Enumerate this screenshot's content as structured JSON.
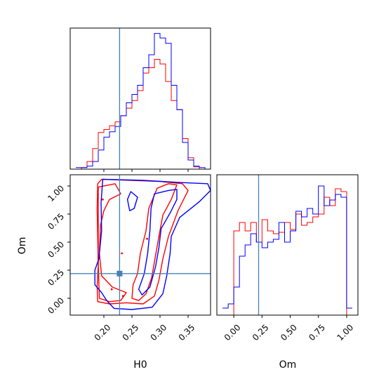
{
  "colors": {
    "red": "#ff0000",
    "blue": "#0000ff",
    "truth": "#4682b4"
  },
  "chart_data": [
    {
      "panel": "hist-H0",
      "type": "histogram",
      "xlim": [
        0.14,
        0.39
      ],
      "truth": 0.228,
      "bins": [
        0.15,
        0.16,
        0.17,
        0.18,
        0.19,
        0.2,
        0.21,
        0.22,
        0.23,
        0.24,
        0.25,
        0.26,
        0.27,
        0.28,
        0.29,
        0.3,
        0.31,
        0.32,
        0.33,
        0.34,
        0.35,
        0.36,
        0.37,
        0.38,
        0.39
      ],
      "series": [
        {
          "color": "red",
          "values": [
            0,
            2,
            10,
            27,
            48,
            52,
            57,
            62,
            70,
            80,
            90,
            103,
            126,
            133,
            144,
            138,
            115,
            90,
            78,
            40,
            15,
            3,
            0,
            0
          ]
        },
        {
          "color": "blue",
          "values": [
            2,
            2,
            4,
            10,
            25,
            42,
            49,
            56,
            70,
            87,
            98,
            110,
            133,
            150,
            178,
            172,
            165,
            110,
            78,
            35,
            12,
            4,
            2,
            0
          ]
        }
      ]
    },
    {
      "panel": "corner-H0-Om",
      "type": "contour",
      "xlabel": "H0",
      "ylabel": "Om",
      "xlim": [
        0.14,
        0.39
      ],
      "ylim": [
        -0.15,
        1.1
      ],
      "xticks": [
        "0.20",
        "0.25",
        "0.30",
        "0.35"
      ],
      "yticks": [
        "0.00",
        "0.25",
        "0.50",
        "0.75",
        "1.00"
      ],
      "truth": {
        "x": 0.228,
        "y": 0.22
      },
      "contours": [
        {
          "color": "red",
          "level": "outer",
          "points": [
            [
              0.189,
              1.02
            ],
            [
              0.196,
              1.06
            ],
            [
              0.25,
              1.05
            ],
            [
              0.3,
              1.04
            ],
            [
              0.34,
              1.02
            ],
            [
              0.35,
              0.96
            ],
            [
              0.332,
              0.78
            ],
            [
              0.315,
              0.55
            ],
            [
              0.305,
              0.35
            ],
            [
              0.298,
              0.16
            ],
            [
              0.29,
              0.02
            ],
            [
              0.27,
              -0.05
            ],
            [
              0.24,
              -0.04
            ],
            [
              0.21,
              -0.05
            ],
            [
              0.189,
              -0.03
            ],
            [
              0.188,
              0.1
            ],
            [
              0.19,
              0.3
            ],
            [
              0.189,
              0.55
            ],
            [
              0.188,
              0.8
            ],
            [
              0.189,
              1.02
            ]
          ]
        },
        {
          "color": "red",
          "level": "inner",
          "points": [
            [
              0.19,
              0.99
            ],
            [
              0.22,
              1.02
            ],
            [
              0.23,
              0.93
            ],
            [
              0.21,
              0.88
            ],
            [
              0.2,
              0.78
            ],
            [
              0.194,
              0.65
            ],
            [
              0.192,
              0.4
            ],
            [
              0.196,
              0.2
            ],
            [
              0.215,
              0.1
            ],
            [
              0.24,
              0.05
            ],
            [
              0.23,
              -0.02
            ],
            [
              0.21,
              -0.03
            ],
            [
              0.192,
              0.0
            ],
            [
              0.19,
              0.3
            ],
            [
              0.19,
              0.7
            ],
            [
              0.19,
              0.99
            ]
          ]
        },
        {
          "color": "red",
          "level": "inner",
          "points": [
            [
              0.295,
              0.98
            ],
            [
              0.315,
              1.02
            ],
            [
              0.33,
              1.01
            ],
            [
              0.32,
              0.88
            ],
            [
              0.305,
              0.74
            ],
            [
              0.298,
              0.55
            ],
            [
              0.292,
              0.38
            ],
            [
              0.285,
              0.18
            ],
            [
              0.275,
              0.04
            ],
            [
              0.262,
              -0.02
            ],
            [
              0.25,
              0.0
            ],
            [
              0.252,
              0.12
            ],
            [
              0.26,
              0.22
            ],
            [
              0.265,
              0.4
            ],
            [
              0.275,
              0.6
            ],
            [
              0.28,
              0.8
            ],
            [
              0.295,
              0.98
            ]
          ]
        },
        {
          "color": "blue",
          "level": "outer",
          "points": [
            [
              0.198,
              1.06
            ],
            [
              0.27,
              1.05
            ],
            [
              0.34,
              1.03
            ],
            [
              0.385,
              1.02
            ],
            [
              0.39,
              0.96
            ],
            [
              0.37,
              0.86
            ],
            [
              0.335,
              0.72
            ],
            [
              0.32,
              0.55
            ],
            [
              0.318,
              0.4
            ],
            [
              0.312,
              0.2
            ],
            [
              0.305,
              0.04
            ],
            [
              0.286,
              -0.08
            ],
            [
              0.25,
              -0.1
            ],
            [
              0.218,
              -0.09
            ],
            [
              0.205,
              -0.02
            ],
            [
              0.196,
              0.05
            ],
            [
              0.184,
              0.12
            ],
            [
              0.184,
              0.25
            ],
            [
              0.191,
              0.35
            ],
            [
              0.196,
              0.6
            ],
            [
              0.195,
              0.85
            ],
            [
              0.198,
              1.06
            ]
          ]
        },
        {
          "color": "blue",
          "level": "inner",
          "points": [
            [
              0.29,
              0.93
            ],
            [
              0.315,
              0.96
            ],
            [
              0.33,
              0.97
            ],
            [
              0.33,
              0.88
            ],
            [
              0.318,
              0.76
            ],
            [
              0.302,
              0.62
            ],
            [
              0.298,
              0.45
            ],
            [
              0.292,
              0.28
            ],
            [
              0.282,
              0.1
            ],
            [
              0.268,
              0.03
            ],
            [
              0.262,
              0.08
            ],
            [
              0.272,
              0.22
            ],
            [
              0.278,
              0.4
            ],
            [
              0.282,
              0.6
            ],
            [
              0.284,
              0.8
            ],
            [
              0.29,
              0.93
            ]
          ]
        },
        {
          "color": "blue",
          "level": "inner",
          "points": [
            [
              0.242,
              0.88
            ],
            [
              0.248,
              0.95
            ],
            [
              0.26,
              0.9
            ],
            [
              0.254,
              0.8
            ],
            [
              0.246,
              0.78
            ],
            [
              0.242,
              0.88
            ]
          ]
        }
      ]
    },
    {
      "panel": "hist-Om",
      "type": "histogram",
      "xlabel": "Om",
      "xlim": [
        -0.15,
        1.1
      ],
      "xticks": [
        "0.00",
        "0.25",
        "0.50",
        "0.75",
        "1.00"
      ],
      "truth": 0.22,
      "bins": [
        -0.1,
        -0.05,
        0.0,
        0.05,
        0.1,
        0.15,
        0.2,
        0.25,
        0.3,
        0.35,
        0.4,
        0.45,
        0.5,
        0.55,
        0.6,
        0.65,
        0.7,
        0.75,
        0.8,
        0.85,
        0.9,
        0.95,
        1.0,
        1.05
      ],
      "series": [
        {
          "color": "red",
          "values": [
            0,
            0,
            60,
            66,
            60,
            66,
            52,
            68,
            60,
            58,
            59,
            66,
            61,
            72,
            64,
            66,
            70,
            72,
            84,
            78,
            90,
            88,
            0
          ]
        },
        {
          "color": "blue",
          "values": [
            5,
            8,
            20,
            42,
            50,
            58,
            52,
            48,
            52,
            54,
            66,
            52,
            60,
            74,
            70,
            76,
            72,
            92,
            78,
            82,
            86,
            84,
            5
          ]
        }
      ]
    }
  ]
}
